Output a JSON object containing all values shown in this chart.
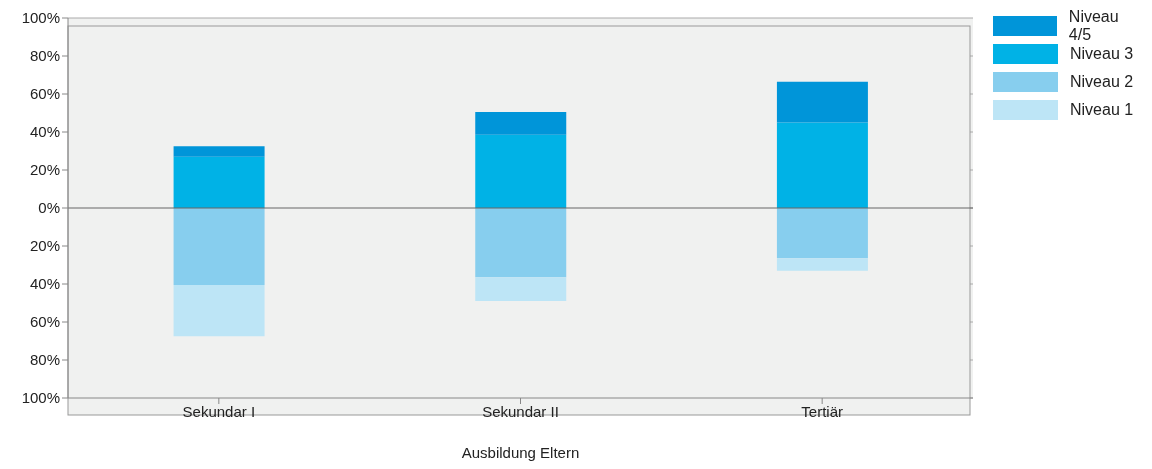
{
  "chart_data": {
    "type": "bar",
    "xlabel": "Ausbildung Eltern",
    "categories": [
      "Sekundar I",
      "Sekundar II",
      "Tertiär"
    ],
    "series": [
      {
        "name": "Niveau 2",
        "color": "#87ceee",
        "values": [
          -40.5,
          -36.5,
          -26.5
        ]
      },
      {
        "name": "Niveau 3",
        "color": "#00b2e6",
        "values": [
          27,
          38.5,
          45
        ]
      },
      {
        "name": "Niveau 1",
        "color": "#bde5f6",
        "values": [
          -27,
          -12.5,
          -6.5
        ]
      },
      {
        "name": "Niveau 4/5",
        "color": "#0095d9",
        "values": [
          5.5,
          12,
          21.5
        ]
      }
    ],
    "stacked": true,
    "ylim": [
      -100,
      100
    ],
    "yticks": [
      {
        "value": -100,
        "label": "100%"
      },
      {
        "value": -80,
        "label": "80%"
      },
      {
        "value": -60,
        "label": "60%"
      },
      {
        "value": -40,
        "label": "40%"
      },
      {
        "value": -20,
        "label": "20%"
      },
      {
        "value": 0,
        "label": "0%"
      },
      {
        "value": 20,
        "label": "20%"
      },
      {
        "value": 40,
        "label": "40%"
      },
      {
        "value": 60,
        "label": "60%"
      },
      {
        "value": 80,
        "label": "80%"
      },
      {
        "value": 100,
        "label": "100%"
      }
    ],
    "grid": "y",
    "legend": "right"
  }
}
